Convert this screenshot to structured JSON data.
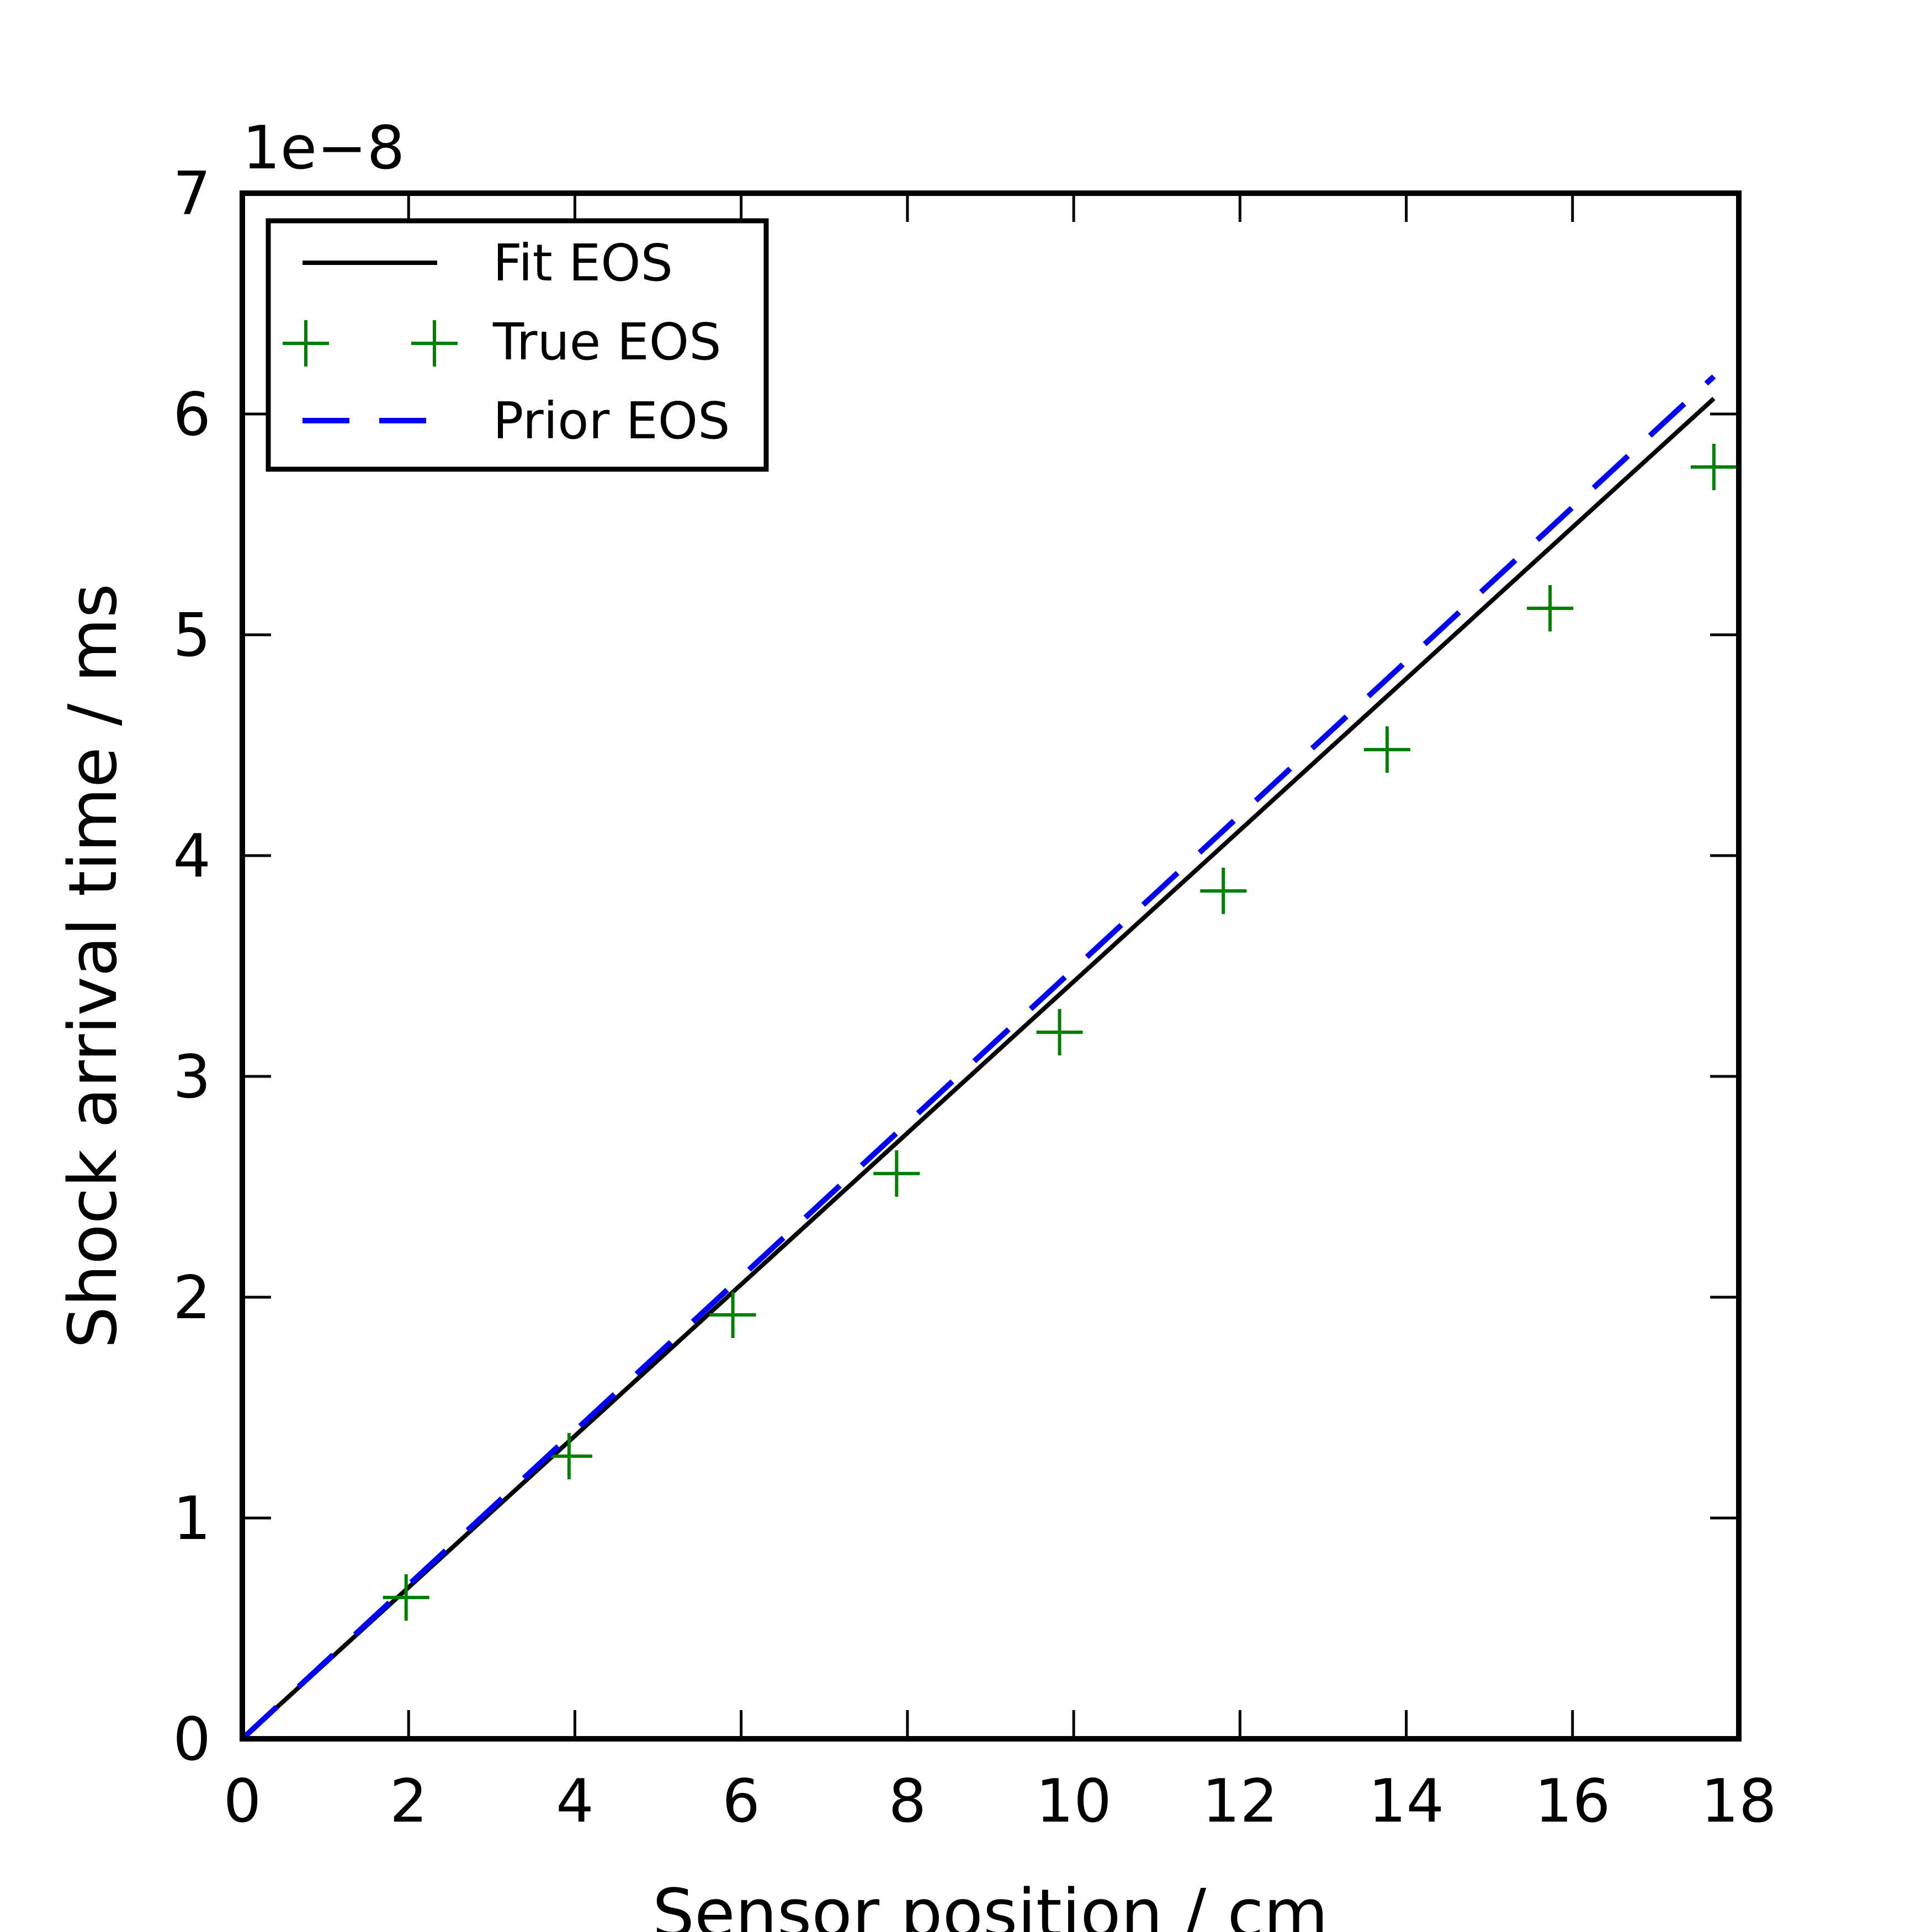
{
  "chart_data": {
    "type": "line",
    "title": "",
    "xlabel": "Sensor position / cm",
    "ylabel": "Shock arrival time / ms",
    "y_offset_label": "1e−8",
    "xlim": [
      0,
      18
    ],
    "ylim": [
      0,
      7
    ],
    "x_ticks": [
      0,
      2,
      4,
      6,
      8,
      10,
      12,
      14,
      16,
      18
    ],
    "y_ticks": [
      0,
      1,
      2,
      3,
      4,
      5,
      6,
      7
    ],
    "x_tick_labels": [
      "0",
      "2",
      "4",
      "6",
      "8",
      "10",
      "12",
      "14",
      "16",
      "18"
    ],
    "y_tick_labels": [
      "0",
      "1",
      "2",
      "3",
      "4",
      "5",
      "6",
      "7"
    ],
    "grid": false,
    "legend_position": "top-left",
    "series": [
      {
        "name": "Fit EOS",
        "style": "solid",
        "color": "#000000",
        "x": [
          0,
          17.7
        ],
        "y": [
          0,
          6.07
        ]
      },
      {
        "name": "True EOS",
        "style": "marker-plus",
        "color": "#008000",
        "x": [
          1.97,
          3.93,
          5.9,
          7.87,
          9.83,
          11.8,
          13.77,
          15.73,
          17.7
        ],
        "y": [
          0.64,
          1.28,
          1.92,
          2.56,
          3.2,
          3.84,
          4.48,
          5.12,
          5.76
        ]
      },
      {
        "name": "Prior EOS",
        "style": "dashed",
        "color": "#0000ff",
        "x": [
          0,
          17.7
        ],
        "y": [
          0,
          6.17
        ]
      }
    ]
  }
}
